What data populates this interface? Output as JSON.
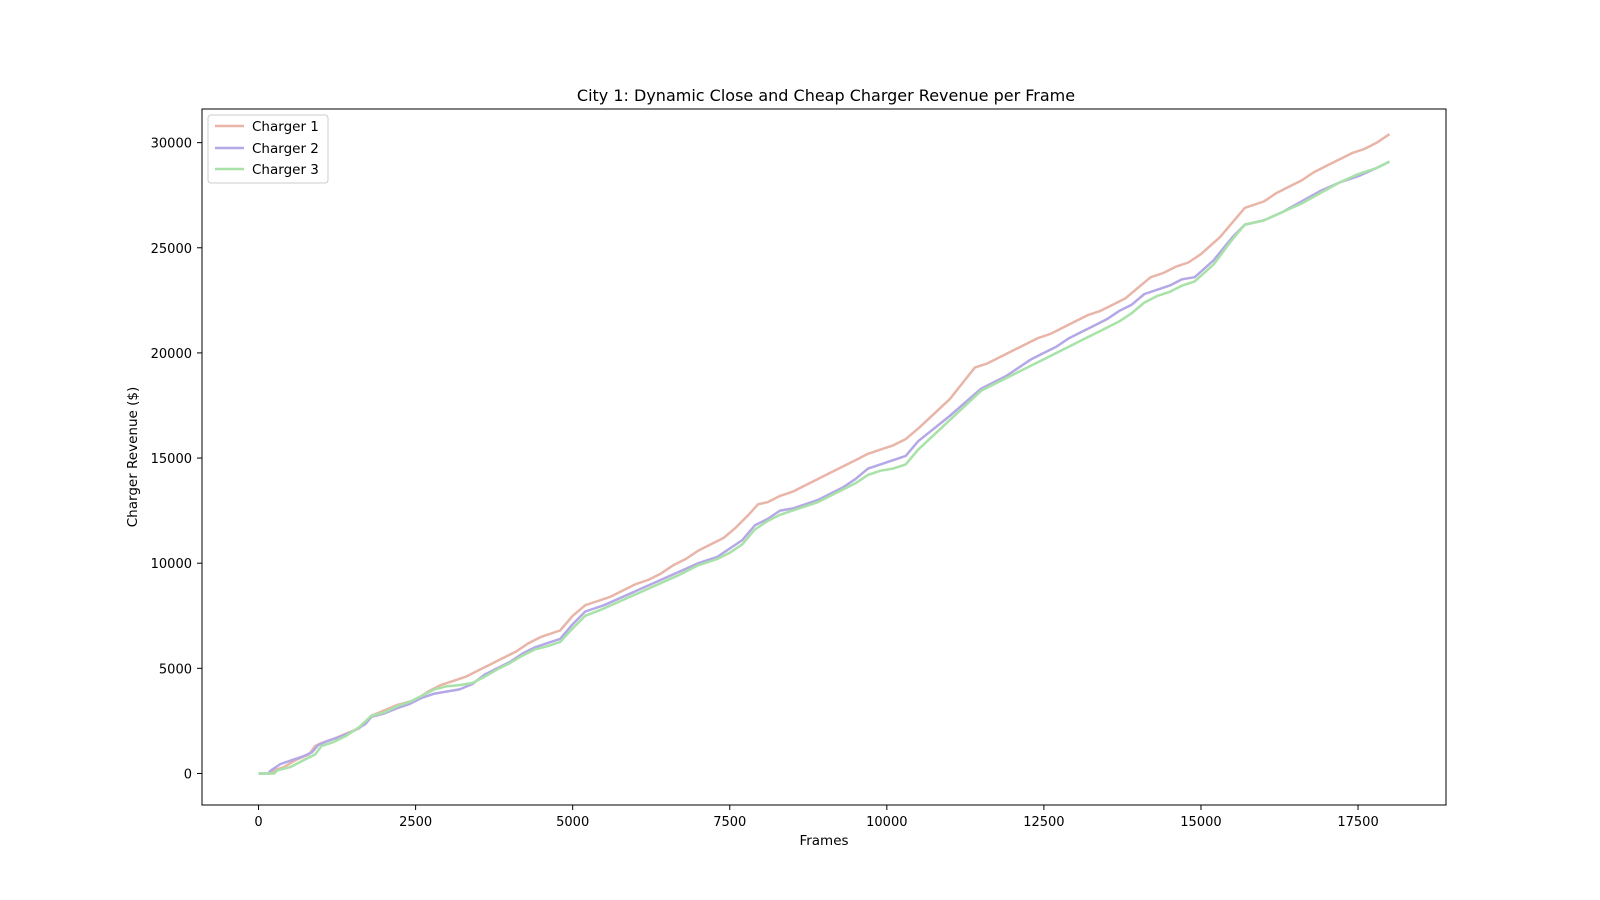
{
  "chart_data": {
    "type": "line",
    "title": "City 1: Dynamic Close and Cheap Charger Revenue per Frame",
    "xlabel": "Frames",
    "ylabel": "Charger Revenue ($)",
    "xlim": [
      -900,
      18900
    ],
    "ylim": [
      -1500,
      31600
    ],
    "xticks": [
      0,
      2500,
      5000,
      7500,
      10000,
      12500,
      15000,
      17500
    ],
    "yticks": [
      0,
      5000,
      10000,
      15000,
      20000,
      25000,
      30000
    ],
    "grid": false,
    "legend_position": "upper left",
    "series": [
      {
        "name": "Charger 1",
        "color": "#e8b5a8",
        "points": [
          [
            0,
            0
          ],
          [
            200,
            0
          ],
          [
            250,
            150
          ],
          [
            400,
            300
          ],
          [
            600,
            650
          ],
          [
            800,
            900
          ],
          [
            900,
            1300
          ],
          [
            1000,
            1450
          ],
          [
            1200,
            1650
          ],
          [
            1400,
            1900
          ],
          [
            1600,
            2150
          ],
          [
            1800,
            2750
          ],
          [
            2000,
            3000
          ],
          [
            2200,
            3250
          ],
          [
            2500,
            3500
          ],
          [
            2700,
            3900
          ],
          [
            2900,
            4200
          ],
          [
            3100,
            4400
          ],
          [
            3300,
            4600
          ],
          [
            3500,
            4900
          ],
          [
            3700,
            5200
          ],
          [
            3900,
            5500
          ],
          [
            4100,
            5800
          ],
          [
            4300,
            6200
          ],
          [
            4500,
            6500
          ],
          [
            4800,
            6800
          ],
          [
            5000,
            7500
          ],
          [
            5200,
            8000
          ],
          [
            5400,
            8200
          ],
          [
            5600,
            8400
          ],
          [
            5800,
            8700
          ],
          [
            6000,
            9000
          ],
          [
            6200,
            9200
          ],
          [
            6400,
            9500
          ],
          [
            6600,
            9900
          ],
          [
            6800,
            10200
          ],
          [
            7000,
            10600
          ],
          [
            7200,
            10900
          ],
          [
            7400,
            11200
          ],
          [
            7600,
            11700
          ],
          [
            7800,
            12300
          ],
          [
            7950,
            12800
          ],
          [
            8100,
            12900
          ],
          [
            8300,
            13200
          ],
          [
            8500,
            13400
          ],
          [
            8700,
            13700
          ],
          [
            8900,
            14000
          ],
          [
            9100,
            14300
          ],
          [
            9300,
            14600
          ],
          [
            9500,
            14900
          ],
          [
            9700,
            15200
          ],
          [
            9900,
            15400
          ],
          [
            10100,
            15600
          ],
          [
            10300,
            15900
          ],
          [
            10500,
            16400
          ],
          [
            11000,
            17800
          ],
          [
            11400,
            19300
          ],
          [
            11600,
            19500
          ],
          [
            11800,
            19800
          ],
          [
            12000,
            20100
          ],
          [
            12200,
            20400
          ],
          [
            12400,
            20700
          ],
          [
            12600,
            20900
          ],
          [
            12800,
            21200
          ],
          [
            13000,
            21500
          ],
          [
            13200,
            21800
          ],
          [
            13400,
            22000
          ],
          [
            13600,
            22300
          ],
          [
            13800,
            22600
          ],
          [
            14000,
            23100
          ],
          [
            14200,
            23600
          ],
          [
            14400,
            23800
          ],
          [
            14600,
            24100
          ],
          [
            14800,
            24300
          ],
          [
            15000,
            24700
          ],
          [
            15300,
            25500
          ],
          [
            15700,
            26900
          ],
          [
            16000,
            27200
          ],
          [
            16200,
            27600
          ],
          [
            16400,
            27900
          ],
          [
            16600,
            28200
          ],
          [
            16800,
            28600
          ],
          [
            17000,
            28900
          ],
          [
            17200,
            29200
          ],
          [
            17400,
            29500
          ],
          [
            17600,
            29700
          ],
          [
            17800,
            30000
          ],
          [
            18000,
            30400
          ]
        ]
      },
      {
        "name": "Charger 2",
        "color": "#b4a8e6",
        "points": [
          [
            0,
            0
          ],
          [
            150,
            0
          ],
          [
            200,
            150
          ],
          [
            350,
            450
          ],
          [
            500,
            600
          ],
          [
            700,
            800
          ],
          [
            850,
            1000
          ],
          [
            950,
            1350
          ],
          [
            1100,
            1550
          ],
          [
            1300,
            1750
          ],
          [
            1500,
            2000
          ],
          [
            1700,
            2350
          ],
          [
            1800,
            2700
          ],
          [
            2000,
            2850
          ],
          [
            2200,
            3100
          ],
          [
            2400,
            3300
          ],
          [
            2600,
            3600
          ],
          [
            2800,
            3800
          ],
          [
            3000,
            3900
          ],
          [
            3200,
            4000
          ],
          [
            3400,
            4250
          ],
          [
            3600,
            4700
          ],
          [
            3800,
            5000
          ],
          [
            4000,
            5300
          ],
          [
            4200,
            5700
          ],
          [
            4400,
            6000
          ],
          [
            4600,
            6200
          ],
          [
            4800,
            6400
          ],
          [
            5000,
            7100
          ],
          [
            5200,
            7700
          ],
          [
            5500,
            8000
          ],
          [
            5800,
            8400
          ],
          [
            6100,
            8800
          ],
          [
            6400,
            9200
          ],
          [
            6700,
            9600
          ],
          [
            7000,
            10000
          ],
          [
            7300,
            10300
          ],
          [
            7500,
            10700
          ],
          [
            7700,
            11100
          ],
          [
            7900,
            11800
          ],
          [
            8100,
            12100
          ],
          [
            8300,
            12500
          ],
          [
            8500,
            12600
          ],
          [
            8700,
            12800
          ],
          [
            8900,
            13000
          ],
          [
            9100,
            13300
          ],
          [
            9300,
            13600
          ],
          [
            9500,
            14000
          ],
          [
            9700,
            14500
          ],
          [
            9900,
            14700
          ],
          [
            10100,
            14900
          ],
          [
            10300,
            15100
          ],
          [
            10500,
            15800
          ],
          [
            11000,
            17000
          ],
          [
            11500,
            18300
          ],
          [
            11700,
            18600
          ],
          [
            11900,
            18900
          ],
          [
            12100,
            19300
          ],
          [
            12300,
            19700
          ],
          [
            12500,
            20000
          ],
          [
            12700,
            20300
          ],
          [
            12900,
            20700
          ],
          [
            13100,
            21000
          ],
          [
            13300,
            21300
          ],
          [
            13500,
            21600
          ],
          [
            13700,
            22000
          ],
          [
            13900,
            22300
          ],
          [
            14100,
            22800
          ],
          [
            14300,
            23000
          ],
          [
            14500,
            23200
          ],
          [
            14700,
            23500
          ],
          [
            14900,
            23600
          ],
          [
            15200,
            24400
          ],
          [
            15500,
            25500
          ],
          [
            15700,
            26100
          ],
          [
            16000,
            26300
          ],
          [
            16300,
            26700
          ],
          [
            16600,
            27200
          ],
          [
            16900,
            27700
          ],
          [
            17200,
            28100
          ],
          [
            17500,
            28400
          ],
          [
            17800,
            28800
          ],
          [
            18000,
            29100
          ]
        ]
      },
      {
        "name": "Charger 3",
        "color": "#a8e2a8",
        "points": [
          [
            0,
            0
          ],
          [
            250,
            0
          ],
          [
            300,
            150
          ],
          [
            500,
            300
          ],
          [
            700,
            600
          ],
          [
            900,
            900
          ],
          [
            1000,
            1300
          ],
          [
            1200,
            1500
          ],
          [
            1400,
            1800
          ],
          [
            1600,
            2200
          ],
          [
            1800,
            2750
          ],
          [
            2000,
            2900
          ],
          [
            2200,
            3200
          ],
          [
            2400,
            3400
          ],
          [
            2600,
            3700
          ],
          [
            2800,
            4000
          ],
          [
            3000,
            4150
          ],
          [
            3200,
            4200
          ],
          [
            3400,
            4300
          ],
          [
            3600,
            4600
          ],
          [
            3800,
            4950
          ],
          [
            4000,
            5250
          ],
          [
            4200,
            5600
          ],
          [
            4400,
            5900
          ],
          [
            4600,
            6050
          ],
          [
            4800,
            6250
          ],
          [
            5000,
            6900
          ],
          [
            5200,
            7500
          ],
          [
            5500,
            7850
          ],
          [
            5800,
            8250
          ],
          [
            6100,
            8650
          ],
          [
            6400,
            9050
          ],
          [
            6700,
            9450
          ],
          [
            7000,
            9900
          ],
          [
            7300,
            10200
          ],
          [
            7500,
            10500
          ],
          [
            7700,
            10900
          ],
          [
            7900,
            11600
          ],
          [
            8100,
            12000
          ],
          [
            8300,
            12300
          ],
          [
            8500,
            12500
          ],
          [
            8700,
            12700
          ],
          [
            8900,
            12900
          ],
          [
            9100,
            13200
          ],
          [
            9300,
            13500
          ],
          [
            9500,
            13800
          ],
          [
            9700,
            14200
          ],
          [
            9900,
            14400
          ],
          [
            10100,
            14500
          ],
          [
            10300,
            14700
          ],
          [
            10500,
            15400
          ],
          [
            11000,
            16800
          ],
          [
            11500,
            18200
          ],
          [
            11700,
            18500
          ],
          [
            11900,
            18800
          ],
          [
            12100,
            19100
          ],
          [
            12300,
            19400
          ],
          [
            12500,
            19700
          ],
          [
            12700,
            20000
          ],
          [
            12900,
            20300
          ],
          [
            13100,
            20600
          ],
          [
            13300,
            20900
          ],
          [
            13500,
            21200
          ],
          [
            13700,
            21500
          ],
          [
            13900,
            21900
          ],
          [
            14100,
            22400
          ],
          [
            14300,
            22700
          ],
          [
            14500,
            22900
          ],
          [
            14700,
            23200
          ],
          [
            14900,
            23400
          ],
          [
            15200,
            24200
          ],
          [
            15500,
            25400
          ],
          [
            15700,
            26100
          ],
          [
            16000,
            26300
          ],
          [
            16300,
            26700
          ],
          [
            16600,
            27100
          ],
          [
            16900,
            27600
          ],
          [
            17200,
            28100
          ],
          [
            17500,
            28500
          ],
          [
            17800,
            28800
          ],
          [
            18000,
            29100
          ]
        ]
      }
    ]
  }
}
